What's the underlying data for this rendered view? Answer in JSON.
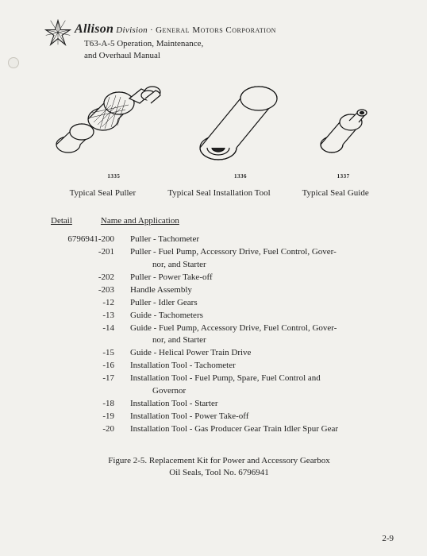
{
  "header": {
    "brand": "Allison",
    "division": "Division",
    "bullet": "·",
    "corp": "General Motors Corporation",
    "subtitle_l1": "T63-A-5 Operation, Maintenance,",
    "subtitle_l2": "and Overhaul Manual"
  },
  "figure": {
    "tools": [
      {
        "num": "1335",
        "label": "Typical Seal Puller"
      },
      {
        "num": "1336",
        "label": "Typical Seal Installation Tool"
      },
      {
        "num": "1337",
        "label": "Typical Seal Guide"
      }
    ]
  },
  "table": {
    "col1": "Detail",
    "col2": "Name and Application",
    "base_pn": "6796941-200",
    "rows": [
      {
        "pn": "6796941-200",
        "desc": "Puller - Tachometer"
      },
      {
        "pn": "-201",
        "desc": "Puller - Fuel Pump, Accessory Drive, Fuel Control, Gover-",
        "cont": "nor, and Starter"
      },
      {
        "pn": "-202",
        "desc": "Puller - Power Take-off"
      },
      {
        "pn": "-203",
        "desc": "Handle Assembly"
      },
      {
        "pn": "-12",
        "desc": "Puller - Idler Gears"
      },
      {
        "pn": "-13",
        "desc": "Guide - Tachometers"
      },
      {
        "pn": "-14",
        "desc": "Guide - Fuel Pump, Accessory Drive, Fuel Control, Gover-",
        "cont": "nor, and Starter"
      },
      {
        "pn": "-15",
        "desc": "Guide - Helical Power Train Drive"
      },
      {
        "pn": "-16",
        "desc": "Installation Tool - Tachometer"
      },
      {
        "pn": "-17",
        "desc": "Installation Tool - Fuel Pump, Spare, Fuel Control and",
        "cont": "Governor"
      },
      {
        "pn": "-18",
        "desc": "Installation Tool - Starter"
      },
      {
        "pn": "-19",
        "desc": "Installation Tool - Power Take-off"
      },
      {
        "pn": "-20",
        "desc": "Installation Tool - Gas Producer Gear Train Idler Spur Gear"
      }
    ]
  },
  "caption": {
    "l1": "Figure 2-5.  Replacement Kit for Power and Accessory Gearbox",
    "l2": "Oil Seals, Tool No. 6796941"
  },
  "page": "2-9",
  "colors": {
    "paper": "#f2f1ed",
    "ink": "#222222"
  }
}
